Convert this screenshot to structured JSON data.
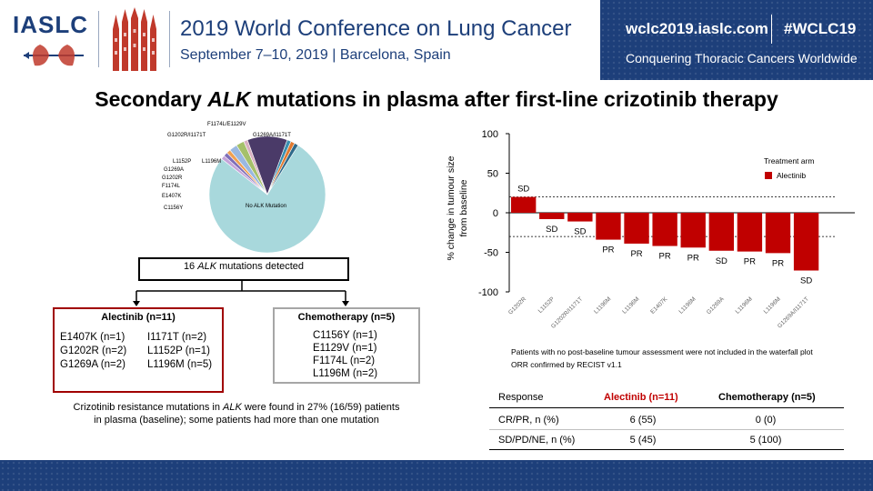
{
  "header": {
    "logo": "IASLC",
    "conference_title": "2019 World Conference on Lung Cancer",
    "conference_subtitle": "September 7–10, 2019 | Barcelona, Spain",
    "website": "wclc2019.iaslc.com",
    "hashtag": "#WCLC19",
    "tagline": "Conquering Thoracic Cancers Worldwide"
  },
  "slide": {
    "title_pre": "Secondary ",
    "title_italic": "ALK",
    "title_post": " mutations in plasma after first-line crizotinib therapy"
  },
  "pie_chart": {
    "type": "pie",
    "slices": [
      {
        "label": "No ALK Mutation",
        "value": 69,
        "color": "#a8d8dc"
      },
      {
        "label": "C1156Y",
        "value": 1,
        "color": "#c5a3d9"
      },
      {
        "label": "E1407K",
        "value": 1,
        "color": "#7f6fb8"
      },
      {
        "label": "F1174L",
        "value": 1,
        "color": "#f0a050"
      },
      {
        "label": "G1202R",
        "value": 2,
        "color": "#9ab8e0"
      },
      {
        "label": "G1269A",
        "value": 2,
        "color": "#a5c06a"
      },
      {
        "label": "L1152P",
        "value": 1,
        "color": "#d8b0c0"
      },
      {
        "label": "L1196M",
        "value": 10,
        "color": "#4a3a68"
      },
      {
        "label": "G1202R/I1171T",
        "value": 1,
        "color": "#3a8fb0"
      },
      {
        "label": "F1174L/E1129V",
        "value": 1,
        "color": "#e07a30"
      },
      {
        "label": "G1269A/I1171T",
        "value": 1,
        "color": "#2f6a8a"
      }
    ],
    "labels": {
      "no_mut": "No ALK Mutation",
      "c1156y": "C1156Y",
      "e1407k": "E1407K",
      "f1174l": "F1174L",
      "g1202r": "G1202R",
      "g1269a": "G1269A",
      "l1152p": "L1152P",
      "l1196m": "L1196M",
      "g1202r_i1171t": "G1202R/I1171T",
      "f1174l_e1129v": "F1174L/E1129V",
      "g1269a_i1171t": "G1269A/I1171T"
    }
  },
  "flow": {
    "detected_pre": "16 ",
    "detected_italic": "ALK",
    "detected_post": " mutations detected",
    "alectinib_title": "Alectinib (n=11)",
    "alectinib_col1": [
      "E1407K (n=1)",
      "G1202R (n=2)",
      "G1269A (n=2)"
    ],
    "alectinib_col2": [
      "I1171T (n=2)",
      "L1152P (n=1)",
      "L1196M (n=5)"
    ],
    "chemo_title": "Chemotherapy (n=5)",
    "chemo_items": [
      "C1156Y (n=1)",
      "E1129V (n=1)",
      "F1174L (n=2)",
      "L1196M (n=2)"
    ],
    "footnote_pre": "Crizotinib resistance mutations in ",
    "footnote_italic": "ALK",
    "footnote_post": " were found in 27% (16/59) patients",
    "footnote_line2": "in plasma (baseline); some patients had more than one mutation"
  },
  "chart_data": {
    "type": "bar",
    "categories": [
      "G1202R",
      "L1152P",
      "G1202R/I1171T",
      "L1196M",
      "L1196M",
      "E1407K",
      "L1196M",
      "G1269A",
      "L1196M",
      "L1196M",
      "G1269A/I1171T"
    ],
    "values": [
      20,
      -8,
      -11,
      -34,
      -39,
      -42,
      -44,
      -48,
      -49,
      -51,
      -73
    ],
    "responses": [
      "SD",
      "SD",
      "SD",
      "PR",
      "PR",
      "PR",
      "PR",
      "SD",
      "PR",
      "PR",
      "SD"
    ],
    "ylabel_line1": "% change in tumour size",
    "ylabel_line2": "from baseline",
    "ylim": [
      -100,
      100
    ],
    "yticks": [
      100,
      50,
      0,
      -50,
      -100
    ],
    "reference_lines": [
      20,
      -30
    ],
    "legend_title": "Treatment arm",
    "legend_entry": "Alectinib",
    "bar_color": "#c00000",
    "legend_placement": "top-right"
  },
  "notes": {
    "note1": "Patients with no post-baseline tumour assessment were not included in the waterfall plot",
    "note2": "ORR confirmed by RECIST v1.1"
  },
  "response_table": {
    "headers": [
      "Response",
      "Alectinib (n=11)",
      "Chemotherapy (n=5)"
    ],
    "rows": [
      [
        "CR/PR, n (%)",
        "6 (55)",
        "0 (0)"
      ],
      [
        "SD/PD/NE, n (%)",
        "5 (45)",
        "5 (100)"
      ]
    ],
    "alectinib_color": "#c00000"
  }
}
